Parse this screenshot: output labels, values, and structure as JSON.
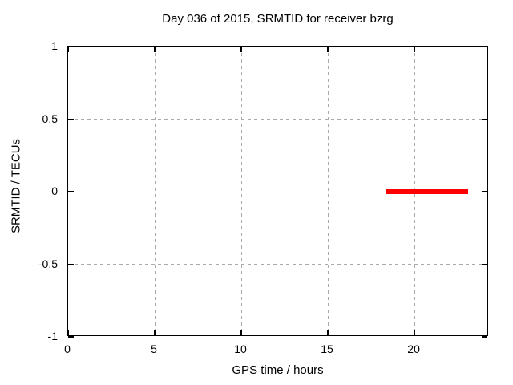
{
  "colors": {
    "series": "#ff0000",
    "grid": "#aaaaaa",
    "axis": "#000000",
    "background": "#ffffff",
    "text": "#000000"
  },
  "chart_data": {
    "type": "line",
    "title": "Day 036 of 2015, SRMTID for receiver bzrg",
    "xlabel": "GPS time / hours",
    "ylabel": "SRMTID / TECUs",
    "xlim": [
      0,
      24.3
    ],
    "ylim": [
      -1,
      1
    ],
    "x_ticks": [
      0,
      5,
      10,
      15,
      20
    ],
    "x_tick_labels": [
      "0",
      "5",
      "10",
      "15",
      "20"
    ],
    "y_ticks": [
      -1,
      -0.5,
      0,
      0.5,
      1
    ],
    "y_tick_labels": [
      "-1",
      "-0.5",
      "0",
      "0.5",
      "1"
    ],
    "grid": true,
    "grid_style": "dashed",
    "legend": "none",
    "series": [
      {
        "name": "SRMTID",
        "color": "#ff0000",
        "segments": [
          {
            "x_start": 18.35,
            "x_end": 23.1,
            "y": 0.0
          }
        ]
      }
    ]
  }
}
